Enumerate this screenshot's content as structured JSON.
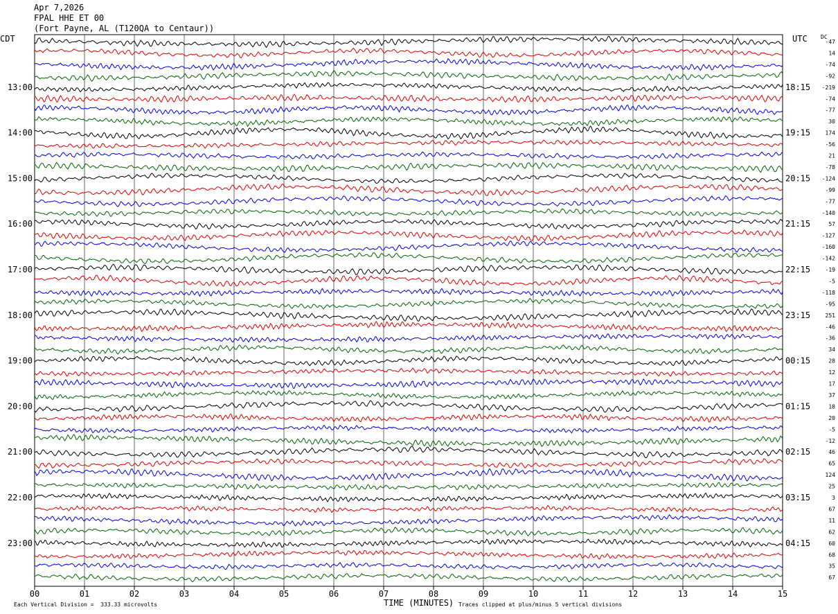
{
  "header": {
    "date": "Apr 7,2026",
    "station": "FPAL HHE ET 00",
    "location": "(Fort Payne, AL (T120QA to Centaur))"
  },
  "left_axis_label": "CDT",
  "right_axis_label": "UTC",
  "dc_label": "DC",
  "footer": {
    "scale_note": "Each Vertical Division =  333.33 microvolts",
    "clip_note": "Traces clipped at plus/minus 5 vertical divisions"
  },
  "colors": {
    "trace_cycle": [
      "#000000",
      "#dd0000",
      "#0000dd",
      "#006400"
    ],
    "grid": "#000000"
  },
  "chart_data": {
    "type": "line",
    "xlabel": "TIME (MINUTES)",
    "x_ticks": [
      "00",
      "01",
      "02",
      "03",
      "04",
      "05",
      "06",
      "07",
      "08",
      "09",
      "10",
      "11",
      "12",
      "13",
      "14",
      "15"
    ],
    "xlim": [
      0,
      15
    ],
    "trace_count": 48,
    "left_times": [
      "13:00",
      "14:00",
      "15:00",
      "16:00",
      "17:00",
      "18:00",
      "19:00",
      "20:00",
      "21:00",
      "22:00",
      "23:00"
    ],
    "right_times": [
      "18:15",
      "19:15",
      "20:15",
      "21:15",
      "22:15",
      "23:15",
      "00:15",
      "01:15",
      "02:15",
      "03:15",
      "04:15"
    ],
    "dc_offsets": [
      "-47",
      "14",
      "-74",
      "-92",
      "-219",
      "-74",
      "-77",
      "30",
      "174",
      "-56",
      "21",
      "-78",
      "-124",
      "-99",
      "-77",
      "-140",
      "57",
      "-127",
      "-160",
      "-142",
      "-19",
      "-5",
      "-118",
      "-95",
      "251",
      "-46",
      "-36",
      "34",
      "28",
      "12",
      "17",
      "37",
      "18",
      "20",
      "-5",
      "-12",
      "46",
      "65",
      "124",
      "25",
      "3",
      "67",
      "11",
      "62",
      "60",
      "68",
      "35",
      "67"
    ]
  }
}
